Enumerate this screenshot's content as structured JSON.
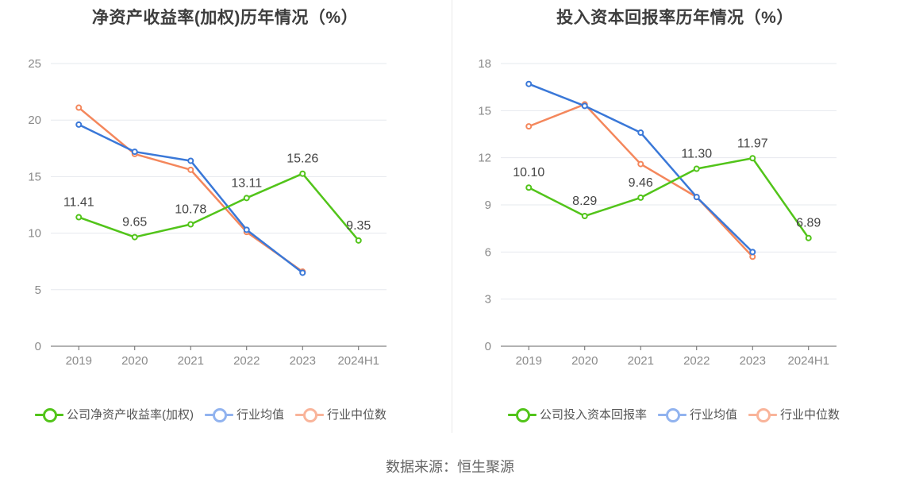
{
  "source_text": "数据来源：恒生聚源",
  "chart_data": [
    {
      "type": "line",
      "title": "净资产收益率(加权)历年情况（%）",
      "categories": [
        "2019",
        "2020",
        "2021",
        "2022",
        "2023",
        "2024H1"
      ],
      "ylim": [
        0,
        25
      ],
      "yticks": [
        0,
        5,
        10,
        15,
        20,
        25
      ],
      "grid": true,
      "legend_position": "bottom",
      "series": [
        {
          "name": "公司净资产收益率(加权)",
          "color": "#52c41a",
          "labeled": true,
          "values": [
            11.41,
            9.65,
            10.78,
            13.11,
            15.26,
            9.35
          ],
          "labels": [
            "11.41",
            "9.65",
            "10.78",
            "13.11",
            "15.26",
            "9.35"
          ]
        },
        {
          "name": "行业均值",
          "color": "#3a78d8",
          "legend_color": "#91b3ef",
          "labeled": false,
          "values": [
            19.6,
            17.2,
            16.4,
            10.3,
            6.5,
            null
          ]
        },
        {
          "name": "行业中位数",
          "color": "#f4875c",
          "legend_color": "#f9b49a",
          "labeled": false,
          "values": [
            21.1,
            17.0,
            15.6,
            10.1,
            6.6,
            null
          ]
        }
      ]
    },
    {
      "type": "line",
      "title": "投入资本回报率历年情况（%）",
      "categories": [
        "2019",
        "2020",
        "2021",
        "2022",
        "2023",
        "2024H1"
      ],
      "ylim": [
        0,
        18
      ],
      "yticks": [
        0,
        3,
        6,
        9,
        12,
        15,
        18
      ],
      "grid": true,
      "legend_position": "bottom",
      "series": [
        {
          "name": "公司投入资本回报率",
          "color": "#52c41a",
          "labeled": true,
          "values": [
            10.1,
            8.29,
            9.46,
            11.3,
            11.97,
            6.89
          ],
          "labels": [
            "10.10",
            "8.29",
            "9.46",
            "11.30",
            "11.97",
            "6.89"
          ]
        },
        {
          "name": "行业均值",
          "color": "#3a78d8",
          "legend_color": "#91b3ef",
          "labeled": false,
          "values": [
            16.7,
            15.3,
            13.6,
            9.5,
            6.0,
            null
          ]
        },
        {
          "name": "行业中位数",
          "color": "#f4875c",
          "legend_color": "#f9b49a",
          "labeled": false,
          "values": [
            14.0,
            15.4,
            11.6,
            9.5,
            5.7,
            null
          ]
        }
      ]
    }
  ]
}
